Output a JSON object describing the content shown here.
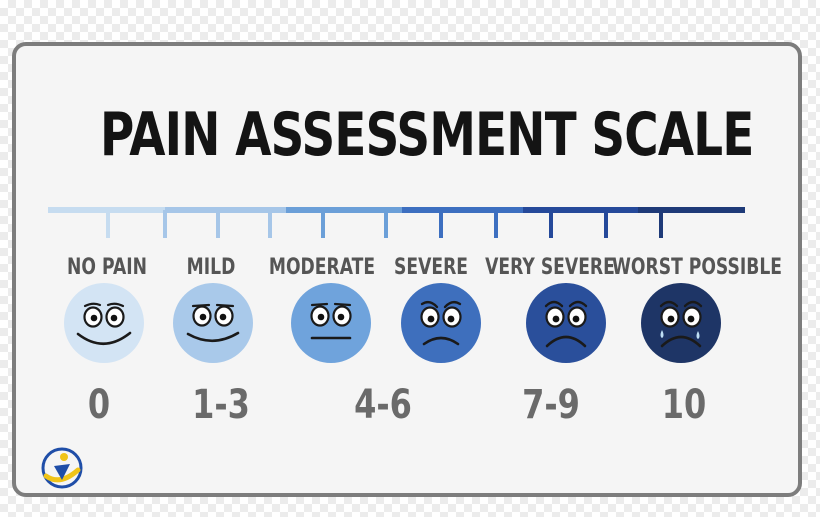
{
  "title": "PAIN ASSESSMENT SCALE",
  "levels": [
    {
      "label": "NO PAIN",
      "range": "0",
      "color": "#d3e4f4",
      "icon": "smiling-face-icon"
    },
    {
      "label": "MILD",
      "range": "1-3",
      "color": "#a9c9ea",
      "icon": "slight-smile-face-icon"
    },
    {
      "label": "MODERATE",
      "range": "4-6",
      "color": "#6fa3dc",
      "icon": "neutral-face-icon"
    },
    {
      "label": "SEVERE",
      "range": "",
      "color": "#3e6fbd",
      "icon": "frowning-face-icon"
    },
    {
      "label": "VERY SEVERE",
      "range": "7-9",
      "color": "#2a4f9b",
      "icon": "sad-face-icon"
    },
    {
      "label": "WORST POSSIBLE",
      "range": "10",
      "color": "#1e3566",
      "icon": "crying-face-icon"
    }
  ],
  "scale_bar_colors": [
    "#c6dcf0",
    "#a6c6e8",
    "#6b9fd8",
    "#3d6fc0",
    "#25499a",
    "#1e3a78"
  ],
  "logo": {
    "icon": "brand-logo-icon",
    "colors": [
      "#1f4ea8",
      "#f0c419"
    ]
  }
}
